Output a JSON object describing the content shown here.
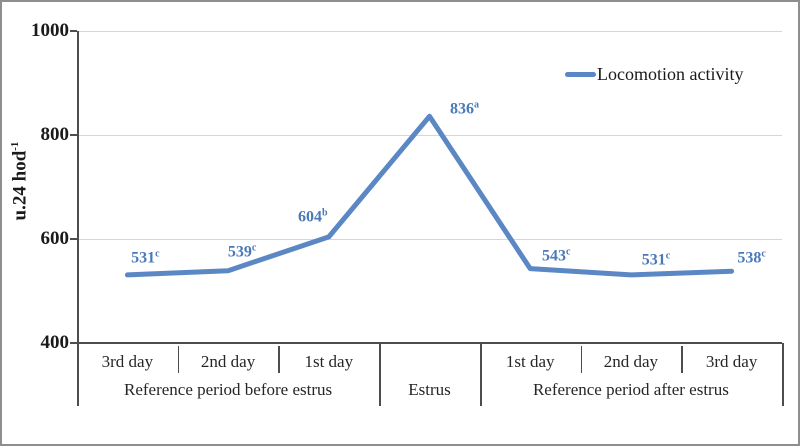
{
  "chart_data": {
    "type": "line",
    "title": "",
    "ylabel": "u.24 hod⁻¹",
    "ylabel_base": "u.24 hod",
    "ylabel_sup": "-1",
    "ylim": [
      400,
      1000
    ],
    "y_ticks": [
      1000,
      800,
      600,
      400
    ],
    "grid": "horizontal",
    "legend_position": "top-right-inside",
    "categories": [
      "3rd day",
      "2nd day",
      "1st day",
      "",
      "1st day",
      "2nd day",
      "3rd day"
    ],
    "category_groups": [
      {
        "label": "Reference period before estrus",
        "span": 3
      },
      {
        "label": "Estrus",
        "span": 1
      },
      {
        "label": "Reference period after estrus",
        "span": 3
      }
    ],
    "series": [
      {
        "name": "Locomotion activity",
        "values": [
          531,
          539,
          604,
          836,
          543,
          531,
          538
        ],
        "label_superscripts": [
          "c",
          "c",
          "b",
          "a",
          "c",
          "c",
          "c"
        ]
      }
    ],
    "colors": {
      "line": "#5b87c5",
      "data_label": "#4a79b8",
      "gridline": "#d6d6d6",
      "axis": "#4d4d4d",
      "text": "#1a1a1a"
    }
  }
}
